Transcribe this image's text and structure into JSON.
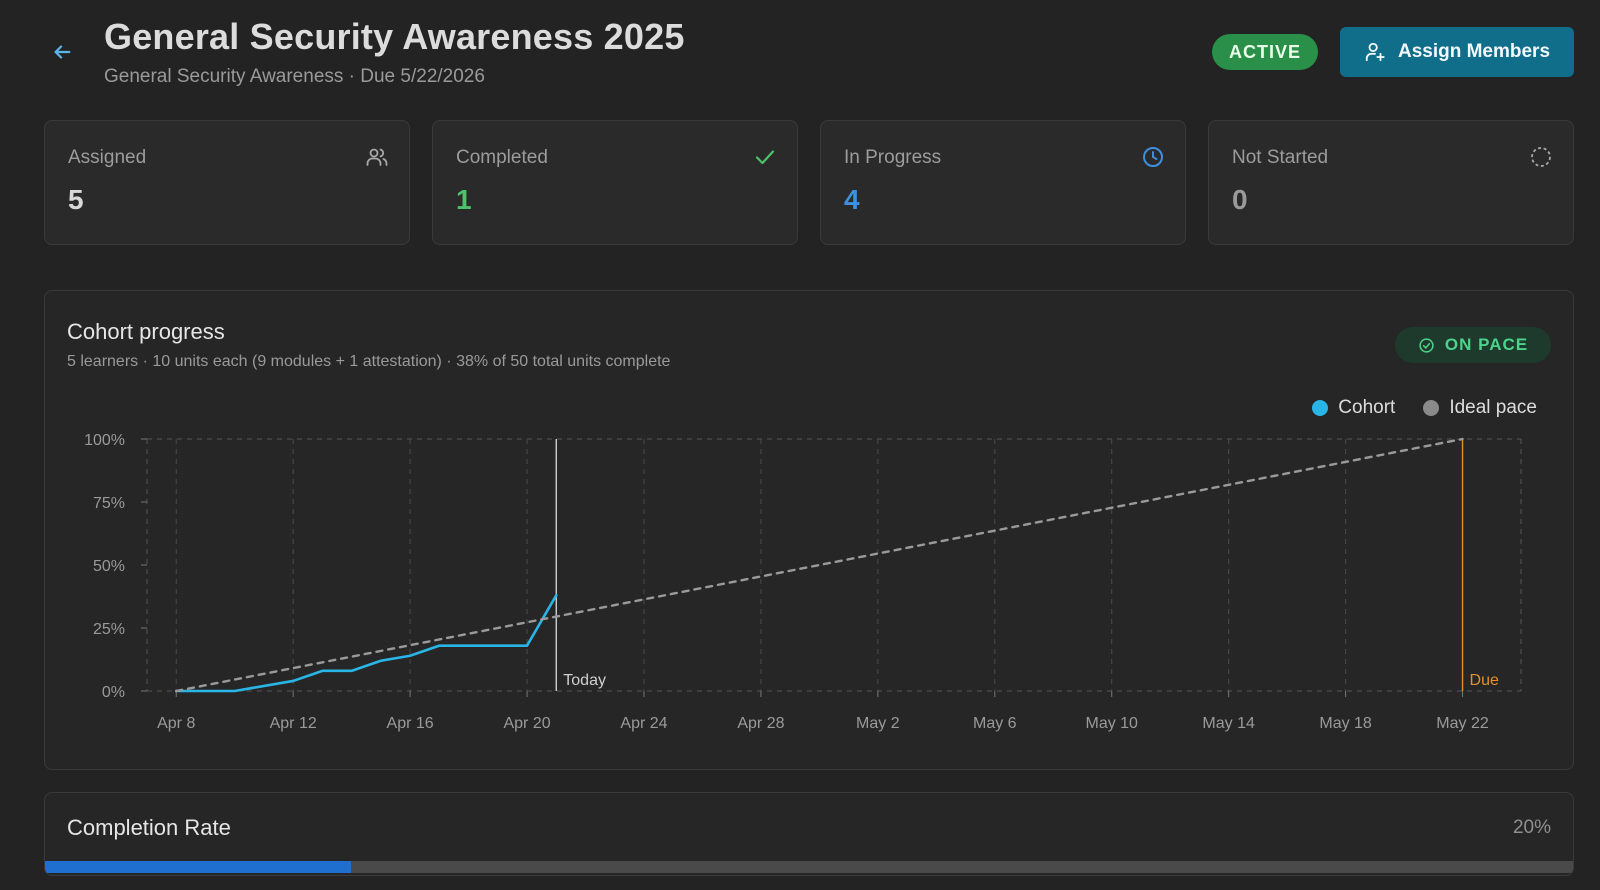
{
  "header": {
    "title": "General Security Awareness 2025",
    "subtitle": "General Security Awareness · Due 5/22/2026",
    "status": "ACTIVE",
    "assign_label": "Assign Members"
  },
  "stats": [
    {
      "label": "Assigned",
      "value": "5",
      "icon": "users-icon",
      "color": "#d8d8d8"
    },
    {
      "label": "Completed",
      "value": "1",
      "icon": "check-icon",
      "color": "#4cc36a"
    },
    {
      "label": "In Progress",
      "value": "4",
      "icon": "clock-icon",
      "color": "#3d8fe0"
    },
    {
      "label": "Not Started",
      "value": "0",
      "icon": "dashed-circle-icon",
      "color": "#9a9a9a"
    }
  ],
  "cohort": {
    "title": "Cohort progress",
    "subtitle": "5 learners · 10 units each (9 modules + 1 attestation) · 38% of 50 total units complete",
    "pace_label": "ON PACE",
    "legend": [
      {
        "label": "Cohort",
        "color": "#29b6e6"
      },
      {
        "label": "Ideal pace",
        "color": "#8a8a8a"
      }
    ],
    "today_label": "Today",
    "due_label": "Due"
  },
  "chart_data": {
    "type": "line",
    "x_tick_labels": [
      "Apr 8",
      "Apr 12",
      "Apr 16",
      "Apr 20",
      "Apr 24",
      "Apr 28",
      "May 2",
      "May 6",
      "May 10",
      "May 14",
      "May 18",
      "May 22"
    ],
    "y_tick_labels": [
      "0%",
      "25%",
      "50%",
      "75%",
      "100%"
    ],
    "ylim": [
      0,
      100
    ],
    "xlim": [
      "Apr 7",
      "May 24"
    ],
    "grid": true,
    "legend_position": "top-right",
    "markers": [
      {
        "label": "Today",
        "x": "Apr 21",
        "color": "#cfcfcf"
      },
      {
        "label": "Due",
        "x": "May 22",
        "color": "#e3902a"
      }
    ],
    "series": [
      {
        "name": "Cohort",
        "color": "#29b6e6",
        "style": "solid",
        "points": [
          {
            "x": "Apr 8",
            "y": 0
          },
          {
            "x": "Apr 10",
            "y": 0
          },
          {
            "x": "Apr 12",
            "y": 4
          },
          {
            "x": "Apr 13",
            "y": 8
          },
          {
            "x": "Apr 14",
            "y": 8
          },
          {
            "x": "Apr 15",
            "y": 12
          },
          {
            "x": "Apr 16",
            "y": 14
          },
          {
            "x": "Apr 17",
            "y": 18
          },
          {
            "x": "Apr 20",
            "y": 18
          },
          {
            "x": "Apr 21",
            "y": 38
          }
        ]
      },
      {
        "name": "Ideal pace",
        "color": "#9a9a9a",
        "style": "dashed",
        "points": [
          {
            "x": "Apr 8",
            "y": 0
          },
          {
            "x": "May 22",
            "y": 100
          }
        ]
      }
    ]
  },
  "completion": {
    "title": "Completion Rate",
    "percent_label": "20%",
    "fraction": 0.2,
    "fill_color": "#1e6fd0"
  }
}
